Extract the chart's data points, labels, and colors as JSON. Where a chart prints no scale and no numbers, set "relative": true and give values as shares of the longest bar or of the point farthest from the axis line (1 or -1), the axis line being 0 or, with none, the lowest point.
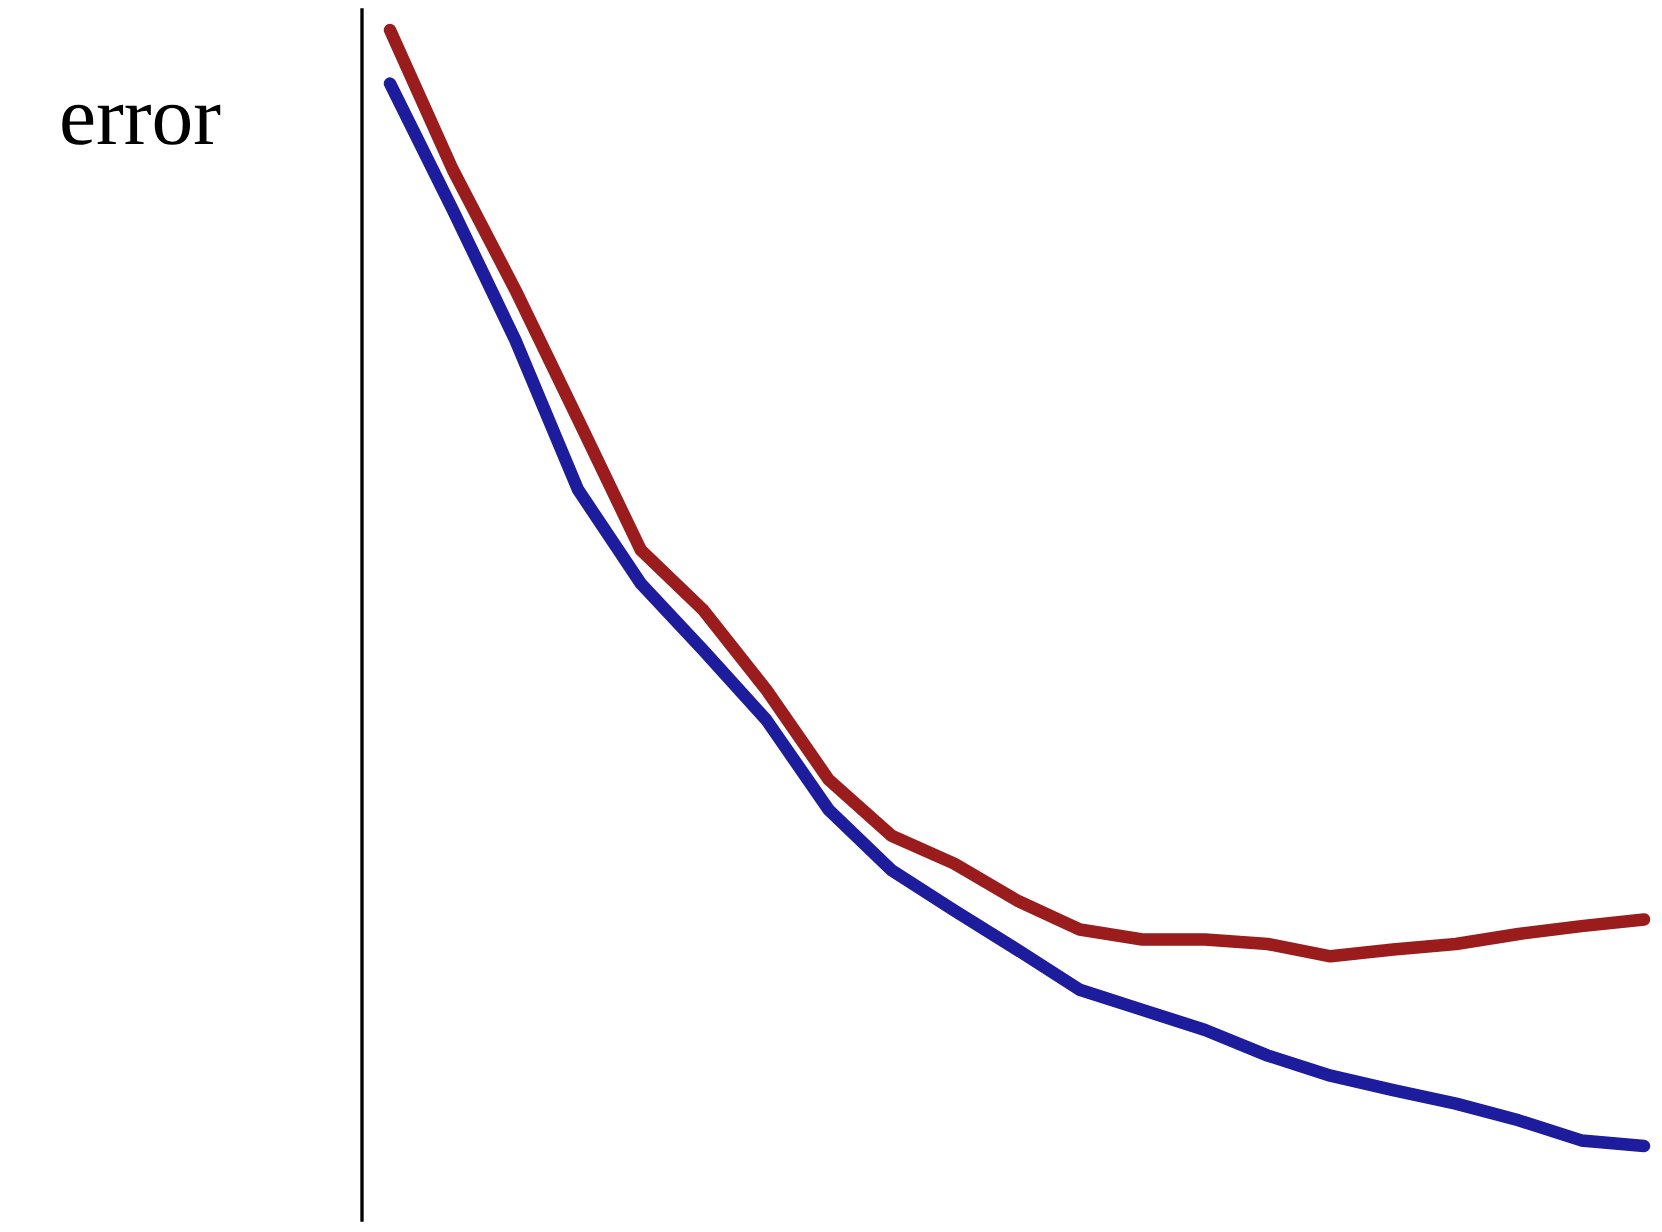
{
  "chart_data": {
    "type": "line",
    "ylabel": "error",
    "relative": true,
    "legend": false,
    "marker": "none",
    "line_style": "solid",
    "categories": [
      null,
      null,
      null,
      null,
      null,
      null,
      null,
      null,
      null,
      null,
      null,
      null,
      null,
      null,
      null,
      null,
      null,
      null,
      null,
      null,
      null
    ],
    "series": [
      {
        "color": "#1c1c9c",
        "values": [
          0.952,
          0.839,
          0.722,
          0.588,
          0.504,
          0.444,
          0.382,
          0.301,
          0.247,
          0.211,
          0.176,
          0.14,
          0.122,
          0.104,
          0.081,
          0.063,
          0.05,
          0.038,
          0.023,
          0.005,
          0
        ]
      },
      {
        "color": "#9b1c1c",
        "values": [
          1,
          0.875,
          0.767,
          0.651,
          0.534,
          0.48,
          0.409,
          0.328,
          0.278,
          0.253,
          0.22,
          0.194,
          0.185,
          0.185,
          0.181,
          0.17,
          0.176,
          0.181,
          0.19,
          0.197,
          0.203
        ]
      }
    ]
  }
}
